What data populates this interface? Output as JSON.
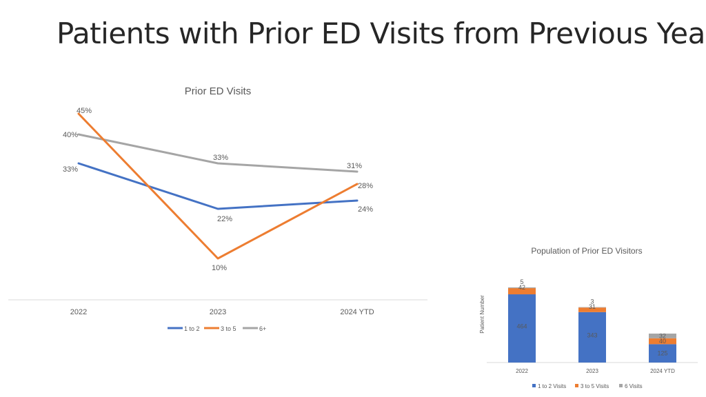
{
  "page": {
    "title": "Patients with Prior ED Visits from Previous Year"
  },
  "colors": {
    "blue": "#4472C4",
    "orange": "#ED7D31",
    "gray": "#A5A5A5"
  },
  "chart_data": [
    {
      "type": "line",
      "title": "Prior ED Visits",
      "categories": [
        "2022",
        "2023",
        "2024 YTD"
      ],
      "series": [
        {
          "name": "1 to 2",
          "values": [
            33,
            22,
            24
          ],
          "labels": [
            "33%",
            "22%",
            "24%"
          ],
          "color": "#4472C4"
        },
        {
          "name": "3 to 5",
          "values": [
            45,
            10,
            28
          ],
          "labels": [
            "45%",
            "10%",
            "28%"
          ],
          "color": "#ED7D31"
        },
        {
          "name": "6+",
          "values": [
            40,
            33,
            31
          ],
          "labels": [
            "40%",
            "33%",
            "31%"
          ],
          "color": "#A5A5A5"
        }
      ],
      "ylim": [
        0,
        50
      ],
      "grid": false,
      "legend": "bottom"
    },
    {
      "type": "bar",
      "stacked": true,
      "title": "Population of Prior ED Visitors",
      "ylabel": "Patient Number",
      "categories": [
        "2022",
        "2023",
        "2024 YTD"
      ],
      "series": [
        {
          "name": "1 to 2 Visits",
          "values": [
            464,
            343,
            125
          ],
          "color": "#4472C4"
        },
        {
          "name": "3 to 5 Visits",
          "values": [
            42,
            31,
            40
          ],
          "color": "#ED7D31"
        },
        {
          "name": "6 Visits",
          "values": [
            5,
            3,
            32
          ],
          "color": "#A5A5A5"
        }
      ],
      "legend": "bottom"
    }
  ]
}
